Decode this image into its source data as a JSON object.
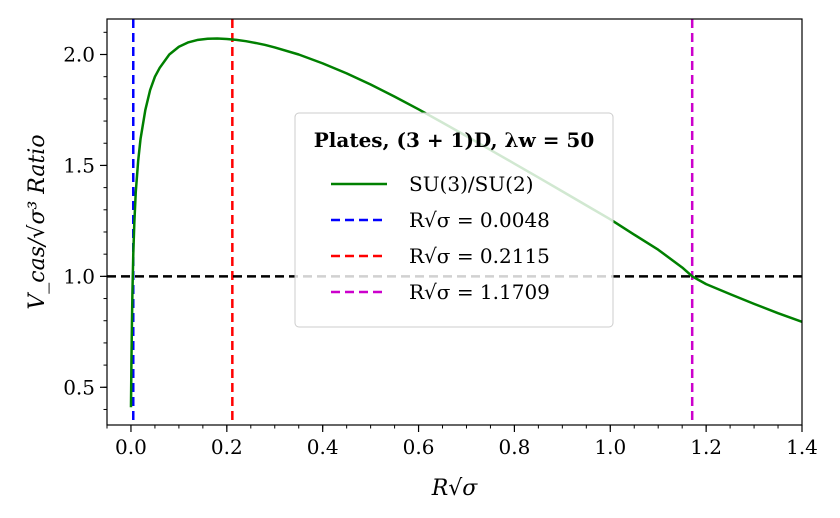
{
  "chart_data": {
    "type": "line",
    "xlabel": "R√σ",
    "ylabel": "V_cas/√σ³ Ratio",
    "xlim": [
      -0.05,
      1.4
    ],
    "ylim": [
      0.33,
      2.16
    ],
    "x_ticks": [
      {
        "value": 0.0,
        "label": "0.0"
      },
      {
        "value": 0.2,
        "label": "0.2"
      },
      {
        "value": 0.4,
        "label": "0.4"
      },
      {
        "value": 0.6,
        "label": "0.6"
      },
      {
        "value": 0.8,
        "label": "0.8"
      },
      {
        "value": 1.0,
        "label": "1.0"
      },
      {
        "value": 1.2,
        "label": "1.2"
      },
      {
        "value": 1.4,
        "label": "1.4"
      }
    ],
    "y_ticks": [
      {
        "value": 0.5,
        "label": "0.5"
      },
      {
        "value": 1.0,
        "label": "1.0"
      },
      {
        "value": 1.5,
        "label": "1.5"
      },
      {
        "value": 2.0,
        "label": "2.0"
      }
    ],
    "series": [
      {
        "name": "SU(3)/SU(2)",
        "color": "#008000",
        "x": [
          0.0,
          0.001,
          0.002,
          0.003,
          0.0048,
          0.007,
          0.01,
          0.015,
          0.02,
          0.03,
          0.04,
          0.05,
          0.06,
          0.08,
          0.1,
          0.12,
          0.14,
          0.16,
          0.18,
          0.2,
          0.22,
          0.24,
          0.26,
          0.28,
          0.3,
          0.35,
          0.4,
          0.45,
          0.5,
          0.55,
          0.6,
          0.65,
          0.7,
          0.75,
          0.8,
          0.85,
          0.9,
          0.95,
          1.0,
          1.05,
          1.1,
          1.15,
          1.1709,
          1.2,
          1.25,
          1.3,
          1.35,
          1.4
        ],
        "y": [
          0.41,
          0.62,
          0.78,
          0.92,
          1.1,
          1.24,
          1.38,
          1.52,
          1.62,
          1.75,
          1.84,
          1.9,
          1.94,
          2.0,
          2.035,
          2.055,
          2.066,
          2.071,
          2.072,
          2.07,
          2.066,
          2.06,
          2.052,
          2.043,
          2.032,
          2.0,
          1.96,
          1.915,
          1.865,
          1.81,
          1.753,
          1.693,
          1.632,
          1.57,
          1.508,
          1.446,
          1.383,
          1.32,
          1.257,
          1.188,
          1.12,
          1.04,
          1.0,
          0.965,
          0.92,
          0.876,
          0.834,
          0.795
        ]
      }
    ],
    "reference_lines": [
      {
        "orientation": "vertical",
        "value": 0.0048,
        "color": "#0000ff",
        "label": "R√σ = 0.0048"
      },
      {
        "orientation": "vertical",
        "value": 0.2115,
        "color": "#ff0000",
        "label": "R√σ = 0.2115"
      },
      {
        "orientation": "vertical",
        "value": 1.1709,
        "color": "#cc00cc",
        "label": "R√σ = 1.1709"
      },
      {
        "orientation": "horizontal",
        "value": 1.0,
        "color": "#000000",
        "label": ""
      }
    ],
    "legend": {
      "title": "Plates, (3 + 1)D, λw = 50",
      "placement": "center",
      "entries": [
        {
          "label": "SU(3)/SU(2)",
          "color": "#008000"
        },
        {
          "label": "R√σ = 0.0048",
          "color": "#0000ff"
        },
        {
          "label": "R√σ = 0.2115",
          "color": "#ff0000"
        },
        {
          "label": "R√σ = 1.1709",
          "color": "#cc00cc"
        }
      ]
    }
  }
}
